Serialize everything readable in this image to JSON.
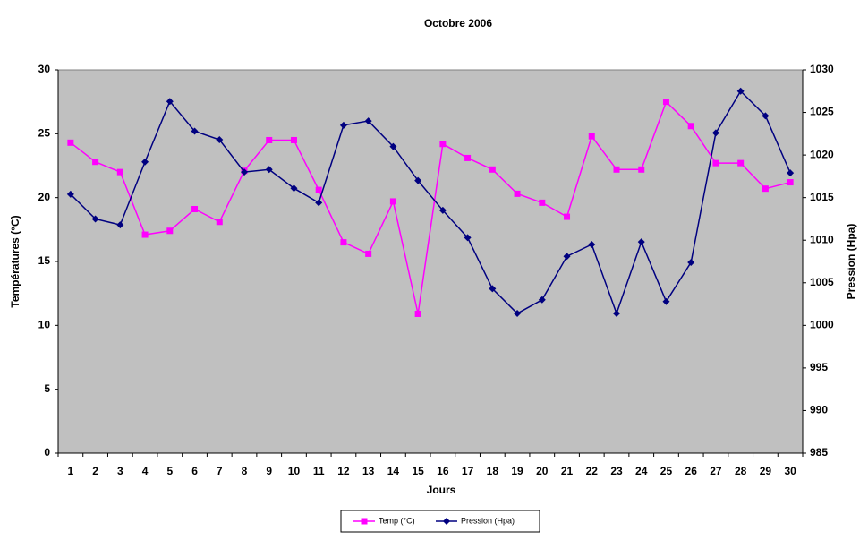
{
  "chart_data": {
    "type": "line",
    "title": "Octobre 2006",
    "x_label": "Jours",
    "y_label": "Températures (°C)",
    "y2_label": "Pression (Hpa)",
    "categories": [
      "1",
      "2",
      "3",
      "4",
      "5",
      "6",
      "7",
      "8",
      "9",
      "10",
      "11",
      "12",
      "13",
      "14",
      "15",
      "16",
      "17",
      "18",
      "19",
      "20",
      "21",
      "22",
      "23",
      "24",
      "25",
      "26",
      "27",
      "28",
      "29",
      "30"
    ],
    "series": [
      {
        "name": "Temp (°C)",
        "color": "#ff00ff",
        "marker": "square",
        "values": [
          24.3,
          22.8,
          22.0,
          17.1,
          17.4,
          19.1,
          18.1,
          22.1,
          24.5,
          24.5,
          20.6,
          16.5,
          15.6,
          19.7,
          10.9,
          24.2,
          23.1,
          22.2,
          20.3,
          19.6,
          18.5,
          24.8,
          22.2,
          22.2,
          27.5,
          25.6,
          22.7,
          22.7,
          20.7,
          21.2
        ]
      },
      {
        "name": "Pression (Hpa)",
        "color": "#000080",
        "marker": "diamond",
        "axis": "y2",
        "values": [
          1015.4,
          1012.5,
          1011.8,
          1019.2,
          1026.3,
          1022.8,
          1021.8,
          1018.0,
          1018.3,
          1016.1,
          1014.4,
          1023.5,
          1024.0,
          1021.0,
          1017.0,
          1013.5,
          1010.3,
          1004.3,
          1001.4,
          1003.0,
          1008.1,
          1009.5,
          1001.4,
          1009.8,
          1002.8,
          1007.4,
          1022.6,
          1027.5,
          1024.6,
          1017.9
        ]
      }
    ],
    "ylim": [
      0,
      30
    ],
    "yticks": [
      0,
      5,
      10,
      15,
      20,
      25,
      30
    ],
    "y2lim": [
      985,
      1030
    ],
    "y2ticks": [
      985,
      990,
      995,
      1000,
      1005,
      1010,
      1015,
      1020,
      1025,
      1030
    ],
    "plot_background": "#c0c0c0",
    "legend": "bottom"
  }
}
